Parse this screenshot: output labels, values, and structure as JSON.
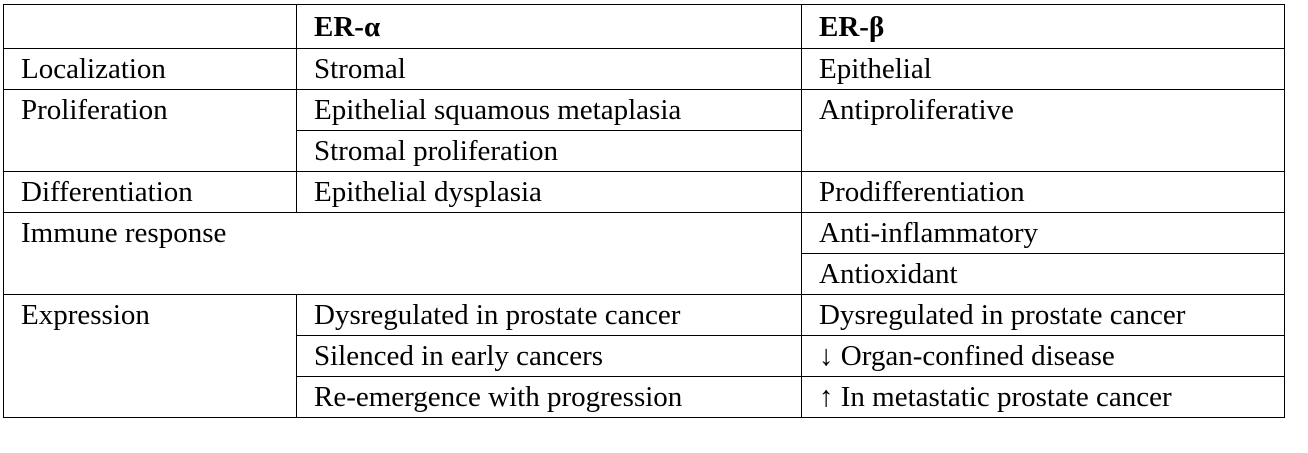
{
  "table": {
    "header": {
      "col1": "",
      "col2": "ER-α",
      "col3": "ER-β"
    },
    "localization": {
      "label": "Localization",
      "er_alpha": "Stromal",
      "er_beta": "Epithelial"
    },
    "proliferation": {
      "label": "Proliferation",
      "er_alpha": [
        "Epithelial squamous metaplasia",
        "Stromal proliferation"
      ],
      "er_beta": "Antiproliferative"
    },
    "differentiation": {
      "label": "Differentiation",
      "er_alpha": "Epithelial dysplasia",
      "er_beta": "Prodifferentiation"
    },
    "immune_response": {
      "label": "Immune response",
      "er_beta": [
        "Anti-inflammatory",
        "Antioxidant"
      ]
    },
    "expression": {
      "label": "Expression",
      "er_alpha": [
        "Dysregulated in prostate cancer",
        "Silenced in early cancers",
        "Re-emergence with progression"
      ],
      "er_beta": [
        "Dysregulated in prostate cancer",
        "↓ Organ-confined disease",
        "↑ In metastatic prostate cancer"
      ]
    }
  }
}
